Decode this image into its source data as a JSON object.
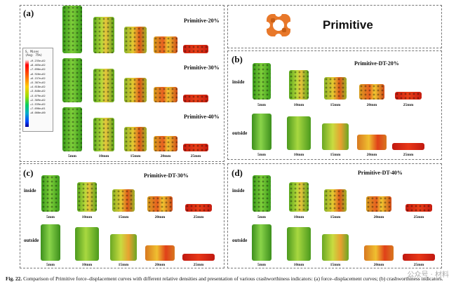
{
  "legend": {
    "title": "S, Mises",
    "subtitle": "(Avg: 75%)",
    "values": [
      "+9.235e+02",
      "+8.465e+02",
      "+7.696e+02",
      "+6.926e+02",
      "+6.157e+02",
      "+5.387e+02",
      "+4.618e+02",
      "+3.848e+02",
      "+3.079e+02",
      "+2.309e+02",
      "+1.539e+02",
      "+7.696e+01",
      "+0.000e+00"
    ]
  },
  "panel_a": {
    "label": "(a)",
    "rows": [
      {
        "title": "Primitive-20%"
      },
      {
        "title": "Primitive-30%"
      },
      {
        "title": "Primitive-40%"
      }
    ],
    "captions": [
      "5mm",
      "10mm",
      "15mm",
      "20mm",
      "25mm"
    ]
  },
  "primitive": {
    "title": "Primitive"
  },
  "panel_b": {
    "label": "(b)",
    "title": "Primitive-DT-20%",
    "inside_label": "inside",
    "outside_label": "outside",
    "captions_inside": [
      "5mm",
      "10mm",
      "15mm",
      "20mm",
      "25mm"
    ],
    "captions_outside": [
      "5mm",
      "10mm",
      "15mm",
      "20mm",
      "25mm"
    ]
  },
  "panel_c": {
    "label": "(c)",
    "title": "Primitive-DT-30%",
    "inside_label": "inside",
    "outside_label": "outside",
    "captions_inside": [
      "5mm",
      "10mm",
      "15mm",
      "20mm",
      "25mm"
    ],
    "captions_outside": [
      "5mm",
      "10mm",
      "15mm",
      "20mm",
      "25mm"
    ]
  },
  "panel_d": {
    "label": "(d)",
    "title": "Primitive-DT-40%",
    "inside_label": "inside",
    "outside_label": "outside",
    "captions_inside": [
      "5mm",
      "10mm",
      "15mm",
      "20mm",
      "25mm"
    ],
    "captions_outside": [
      "5mm",
      "10mm",
      "15mm",
      "20mm",
      "25mm"
    ]
  },
  "caption": {
    "fig": "Fig. 22.",
    "text": "Comparison of Primitive force–displacement curves with different relative densities and presentation of various crashworthiness indicators: (a) force–displacement curves; (b) crashworthiness indicators."
  },
  "watermark": "公众号 · 材料"
}
